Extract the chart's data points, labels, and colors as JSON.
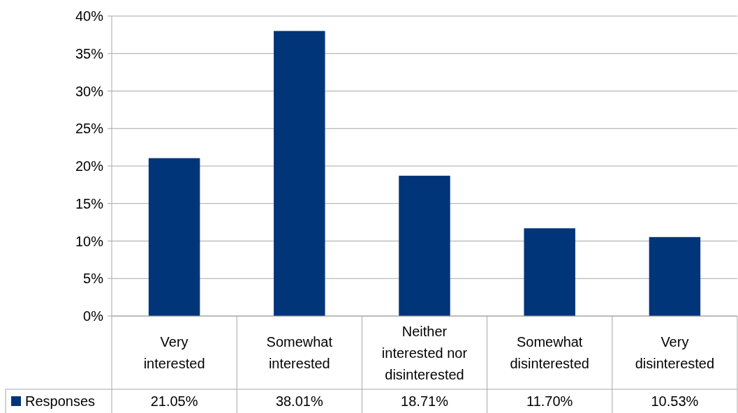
{
  "chart_data": {
    "type": "bar",
    "categories": [
      "Very interested",
      "Somewhat interested",
      "Neither interested nor disinterested",
      "Somewhat disinterested",
      "Very disinterested"
    ],
    "series": [
      {
        "name": "Responses",
        "color": "#00357a",
        "values": [
          21.05,
          38.01,
          18.71,
          11.7,
          10.53
        ],
        "value_labels": [
          "21.05%",
          "38.01%",
          "18.71%",
          "11.70%",
          "10.53%"
        ]
      }
    ],
    "ylim": [
      0,
      40
    ],
    "yticks": [
      {
        "value": 0,
        "label": "0%"
      },
      {
        "value": 5,
        "label": "5%"
      },
      {
        "value": 10,
        "label": "10%"
      },
      {
        "value": 15,
        "label": "15%"
      },
      {
        "value": 20,
        "label": "20%"
      },
      {
        "value": 25,
        "label": "25%"
      },
      {
        "value": 30,
        "label": "30%"
      },
      {
        "value": 35,
        "label": "35%"
      },
      {
        "value": 40,
        "label": "40%"
      }
    ],
    "grid": "y",
    "legend": "bottom"
  }
}
